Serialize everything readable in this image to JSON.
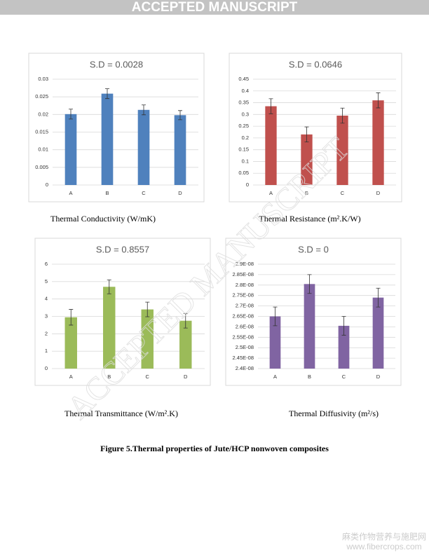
{
  "header": "ACCEPTED MANUSCRIPT",
  "watermark": "ACCEPTED MANUSCRIPT",
  "figure_caption": "Figure 5.Thermal properties of Jute/HCP nonwoven composites",
  "site_name": "麻类作物营养与施肥网",
  "site_url": "www.fibercrops.com",
  "chart_data": [
    {
      "type": "bar",
      "title": "S.D = 0.0028",
      "caption": "Thermal Conductivity (W/mK)",
      "categories": [
        "A",
        "B",
        "C",
        "D"
      ],
      "values": [
        0.0201,
        0.0259,
        0.0213,
        0.0198
      ],
      "errors": [
        0.0014,
        0.0014,
        0.0014,
        0.0013
      ],
      "color": "#4f81bd",
      "ylim": [
        0,
        0.03
      ],
      "yticks": [
        0,
        0.005,
        0.01,
        0.015,
        0.02,
        0.025,
        0.03
      ],
      "grid": true
    },
    {
      "type": "bar",
      "title": "S.D = 0.0646",
      "caption": "Thermal Resistance (m².K/W)",
      "categories": [
        "A",
        "B",
        "C",
        "D"
      ],
      "values": [
        0.335,
        0.215,
        0.295,
        0.36
      ],
      "errors": [
        0.032,
        0.032,
        0.032,
        0.032
      ],
      "color": "#c0504d",
      "ylim": [
        0,
        0.45
      ],
      "yticks": [
        0,
        0.05,
        0.1,
        0.15,
        0.2,
        0.25,
        0.3,
        0.35,
        0.4,
        0.45
      ],
      "grid": true
    },
    {
      "type": "bar",
      "title": "S.D = 0.8557",
      "caption": "Thermal Transmittance (W/m².K)",
      "categories": [
        "A",
        "B",
        "C",
        "D"
      ],
      "values": [
        2.95,
        4.7,
        3.4,
        2.75
      ],
      "errors": [
        0.45,
        0.4,
        0.42,
        0.42
      ],
      "color": "#9bbb59",
      "ylim": [
        0,
        6
      ],
      "yticks": [
        0,
        1,
        2,
        3,
        4,
        5,
        6
      ],
      "grid": true
    },
    {
      "type": "bar",
      "title": "S.D = 0",
      "caption": "Thermal Diffusivity (m²/s)",
      "categories": [
        "A",
        "B",
        "C",
        "D"
      ],
      "values": [
        2.65e-08,
        2.805e-08,
        2.605e-08,
        2.74e-08
      ],
      "errors": [
        4.5e-10,
        4.5e-10,
        4.5e-10,
        4.5e-10
      ],
      "color": "#8064a2",
      "ylim": [
        2.4e-08,
        2.9e-08
      ],
      "yticks": [
        {
          "value": 2.4e-08,
          "label": "2.4E-08"
        },
        {
          "value": 2.45e-08,
          "label": "2.45E-08"
        },
        {
          "value": 2.5e-08,
          "label": "2.5E-08"
        },
        {
          "value": 2.55e-08,
          "label": "2.55E-08"
        },
        {
          "value": 2.6e-08,
          "label": "2.6E-08"
        },
        {
          "value": 2.65e-08,
          "label": "2.65E-08"
        },
        {
          "value": 2.7e-08,
          "label": "2.7E-08"
        },
        {
          "value": 2.75e-08,
          "label": "2.75E-08"
        },
        {
          "value": 2.8e-08,
          "label": "2.8E-08"
        },
        {
          "value": 2.85e-08,
          "label": "2.85E-08"
        },
        {
          "value": 2.9e-08,
          "label": "2.9E-08"
        }
      ],
      "grid": true
    }
  ]
}
